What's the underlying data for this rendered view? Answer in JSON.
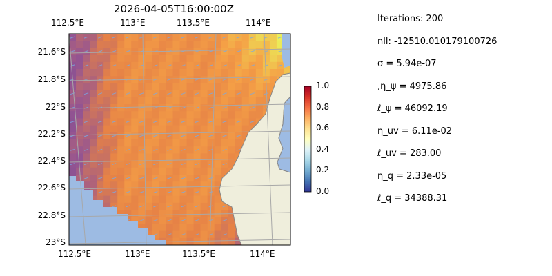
{
  "chart_data": {
    "type": "heatmap",
    "title": "2026-04-05T16:00:00Z",
    "x_tick_labels_top": [
      "112.5°E",
      "113°E",
      "113.5°E",
      "114°E"
    ],
    "x_tick_labels_bottom": [
      "112.5°E",
      "113°E",
      "113.5°E",
      "114°E"
    ],
    "y_tick_labels": [
      "21.6°S",
      "21.8°S",
      "22°S",
      "22.2°S",
      "22.4°S",
      "22.6°S",
      "22.8°S",
      "23°S"
    ],
    "xlim": [
      112.5,
      114.2
    ],
    "ylim": [
      -23.0,
      -21.5
    ],
    "grid": true,
    "colormap": "RdYlBu_r",
    "colorbar": {
      "range": [
        0.0,
        1.0
      ],
      "tick_labels": [
        "0.0",
        "0.2",
        "0.4",
        "0.6",
        "0.8",
        "1.0"
      ],
      "placement": "right"
    },
    "overlays": [
      "land",
      "masked-ocean",
      "quiver-arrows"
    ],
    "colors": {
      "land": "#efeedc",
      "mask": "#9dbbe3",
      "grid": "#a8a8a8"
    }
  },
  "info": [
    "Iterations: 200",
    "nll: -12510.010179100726",
    "σ = 5.94e-07",
    ",η_ψ = 4975.86",
    "ℓ_ψ = 46092.19",
    "η_uv = 6.11e-02",
    "ℓ_uv = 283.00",
    "η_q = 2.33e-05",
    "ℓ_q = 34388.31"
  ]
}
